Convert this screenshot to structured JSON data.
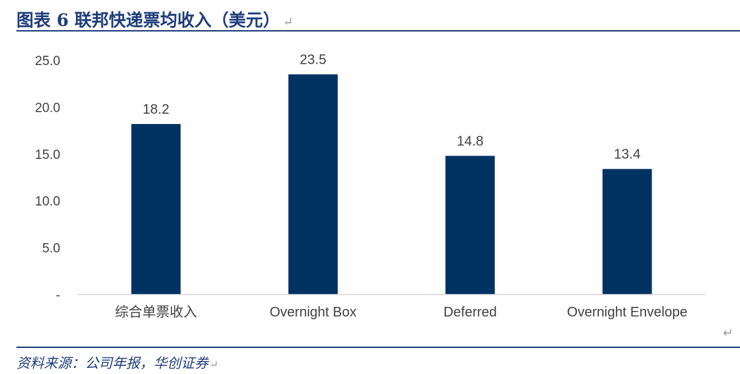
{
  "header": {
    "title": "图表 6  联邦快递票均收入（美元）",
    "title_mark": "↵"
  },
  "footer": {
    "source": "资料来源：公司年报，华创证券",
    "source_mark": "↵",
    "corner_mark": "↵"
  },
  "colors": {
    "bar": "#003262",
    "title": "#1d3d7a",
    "axis": "#d9d9d9",
    "text": "#404040"
  },
  "chart_data": {
    "type": "bar",
    "title": "",
    "xlabel": "",
    "ylabel": "",
    "categories": [
      "综合单票收入",
      "Overnight Box",
      "Deferred",
      "Overnight Envelope"
    ],
    "values": [
      18.2,
      23.5,
      14.8,
      13.4
    ],
    "value_labels": [
      "18.2",
      "23.5",
      "14.8",
      "13.4"
    ],
    "ylim": [
      0,
      25
    ],
    "yticks": [
      0,
      5,
      10,
      15,
      20,
      25
    ],
    "ytick_labels": [
      "-",
      "5.0",
      "10.0",
      "15.0",
      "20.0",
      "25.0"
    ],
    "grid": false,
    "legend": "none"
  }
}
